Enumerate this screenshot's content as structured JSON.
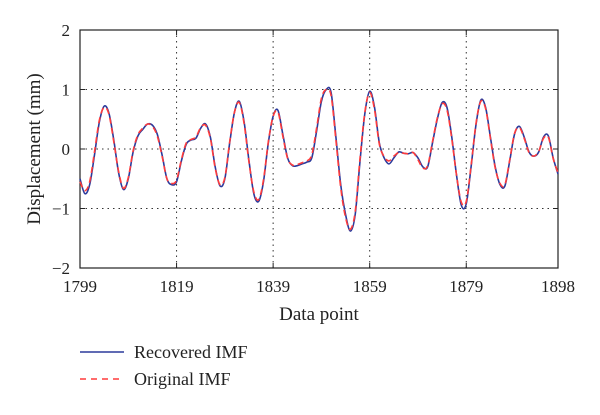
{
  "chart_data": {
    "type": "line",
    "xlabel": "Data point",
    "ylabel": "Displacement (mm)",
    "xlim": [
      1799,
      1898
    ],
    "ylim": [
      -2,
      2
    ],
    "xticks": [
      1799,
      1819,
      1839,
      1859,
      1879,
      1898
    ],
    "yticks": [
      -2,
      -1,
      0,
      1,
      2
    ],
    "grid": "dotted, interior ticks only",
    "legend_position": "bottom-left, below plot",
    "colors": {
      "recovered": "#2b3a9c",
      "original": "#ff3b3b"
    },
    "series": [
      {
        "name": "Recovered IMF",
        "style": "solid",
        "x": [
          1799,
          1800,
          1801,
          1802,
          1803,
          1804,
          1805,
          1806,
          1807,
          1808,
          1809,
          1810,
          1811,
          1812,
          1813,
          1814,
          1815,
          1816,
          1817,
          1818,
          1819,
          1820,
          1821,
          1822,
          1823,
          1824,
          1825,
          1826,
          1827,
          1828,
          1829,
          1830,
          1831,
          1832,
          1833,
          1834,
          1835,
          1836,
          1837,
          1838,
          1839,
          1840,
          1841,
          1842,
          1843,
          1844,
          1845,
          1846,
          1847,
          1848,
          1849,
          1850,
          1851,
          1852,
          1853,
          1854,
          1855,
          1856,
          1857,
          1858,
          1859,
          1860,
          1861,
          1862,
          1863,
          1864,
          1865,
          1866,
          1867,
          1868,
          1869,
          1870,
          1871,
          1872,
          1873,
          1874,
          1875,
          1876,
          1877,
          1878,
          1879,
          1880,
          1881,
          1882,
          1883,
          1884,
          1885,
          1886,
          1887,
          1888,
          1889,
          1890,
          1891,
          1892,
          1893,
          1894,
          1895,
          1896,
          1897,
          1898
        ],
        "values": [
          -0.5,
          -0.75,
          -0.6,
          -0.1,
          0.45,
          0.72,
          0.6,
          0.15,
          -0.4,
          -0.68,
          -0.5,
          -0.05,
          0.22,
          0.33,
          0.42,
          0.4,
          0.25,
          -0.1,
          -0.5,
          -0.6,
          -0.55,
          -0.2,
          0.08,
          0.15,
          0.18,
          0.35,
          0.42,
          0.2,
          -0.3,
          -0.62,
          -0.5,
          0.1,
          0.62,
          0.8,
          0.45,
          -0.2,
          -0.75,
          -0.88,
          -0.55,
          0.1,
          0.55,
          0.65,
          0.25,
          -0.15,
          -0.28,
          -0.28,
          -0.25,
          -0.22,
          -0.15,
          0.3,
          0.8,
          1.0,
          0.95,
          0.2,
          -0.6,
          -1.1,
          -1.38,
          -1.1,
          -0.2,
          0.6,
          0.97,
          0.7,
          0.1,
          -0.15,
          -0.25,
          -0.15,
          -0.05,
          -0.07,
          -0.08,
          -0.06,
          -0.15,
          -0.3,
          -0.3,
          0.1,
          0.5,
          0.78,
          0.7,
          0.2,
          -0.45,
          -0.95,
          -0.92,
          -0.3,
          0.4,
          0.82,
          0.7,
          0.2,
          -0.3,
          -0.6,
          -0.62,
          -0.2,
          0.25,
          0.38,
          0.2,
          -0.05,
          -0.12,
          -0.05,
          0.2,
          0.22,
          -0.15,
          -0.42
        ]
      },
      {
        "name": "Original IMF",
        "style": "dashed",
        "x": [
          1799,
          1800,
          1801,
          1802,
          1803,
          1804,
          1805,
          1806,
          1807,
          1808,
          1809,
          1810,
          1811,
          1812,
          1813,
          1814,
          1815,
          1816,
          1817,
          1818,
          1819,
          1820,
          1821,
          1822,
          1823,
          1824,
          1825,
          1826,
          1827,
          1828,
          1829,
          1830,
          1831,
          1832,
          1833,
          1834,
          1835,
          1836,
          1837,
          1838,
          1839,
          1840,
          1841,
          1842,
          1843,
          1844,
          1845,
          1846,
          1847,
          1848,
          1849,
          1850,
          1851,
          1852,
          1853,
          1854,
          1855,
          1856,
          1857,
          1858,
          1859,
          1860,
          1861,
          1862,
          1863,
          1864,
          1865,
          1866,
          1867,
          1868,
          1869,
          1870,
          1871,
          1872,
          1873,
          1874,
          1875,
          1876,
          1877,
          1878,
          1879,
          1880,
          1881,
          1882,
          1883,
          1884,
          1885,
          1886,
          1887,
          1888,
          1889,
          1890,
          1891,
          1892,
          1893,
          1894,
          1895,
          1896,
          1897,
          1898
        ],
        "values": [
          -0.55,
          -0.7,
          -0.55,
          -0.05,
          0.48,
          0.7,
          0.58,
          0.12,
          -0.38,
          -0.66,
          -0.48,
          -0.03,
          0.24,
          0.35,
          0.42,
          0.38,
          0.22,
          -0.12,
          -0.5,
          -0.58,
          -0.52,
          -0.18,
          0.1,
          0.16,
          0.2,
          0.36,
          0.4,
          0.18,
          -0.32,
          -0.6,
          -0.48,
          0.12,
          0.62,
          0.78,
          0.42,
          -0.22,
          -0.72,
          -0.85,
          -0.52,
          0.12,
          0.55,
          0.62,
          0.22,
          -0.16,
          -0.27,
          -0.26,
          -0.23,
          -0.2,
          -0.1,
          0.35,
          0.85,
          1.0,
          0.9,
          0.15,
          -0.65,
          -1.15,
          -1.35,
          -1.05,
          -0.15,
          0.62,
          0.95,
          0.66,
          0.08,
          -0.13,
          -0.2,
          -0.12,
          -0.06,
          -0.07,
          -0.08,
          -0.06,
          -0.18,
          -0.32,
          -0.28,
          0.12,
          0.52,
          0.76,
          0.66,
          0.17,
          -0.45,
          -0.9,
          -0.88,
          -0.28,
          0.42,
          0.8,
          0.68,
          0.18,
          -0.32,
          -0.58,
          -0.6,
          -0.18,
          0.26,
          0.36,
          0.18,
          -0.06,
          -0.12,
          -0.04,
          0.18,
          0.2,
          -0.16,
          -0.4
        ]
      }
    ]
  }
}
